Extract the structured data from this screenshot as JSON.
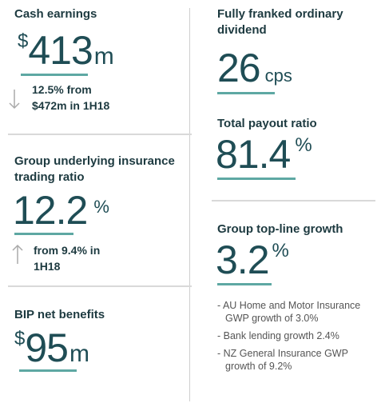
{
  "metrics": [
    {
      "heading": "Cash earnings",
      "prefix": "$",
      "value": 413,
      "suffix": "m",
      "note": "12.5% from $472m in 1H18"
    },
    {
      "heading": "Group underlying insurance trading ratio",
      "value": 12.2,
      "suffix": "%",
      "note": "from 9.4% in 1H18"
    },
    {
      "heading": "BIP net benefits",
      "prefix": "$",
      "value": 95,
      "suffix": "m"
    },
    {
      "heading": "Fully franked ordinary dividend",
      "value": 26,
      "suffix": "cps"
    },
    {
      "heading": "Total payout ratio",
      "value": 81.4,
      "suffix": "%"
    },
    {
      "heading": "Group top-line growth",
      "value": 3.2,
      "suffix": "%",
      "bullets": [
        "AU Home and Motor Insurance GWP growth of 3.0%",
        "Bank lending growth 2.4%",
        "NZ General Insurance GWP growth of 9.2%"
      ]
    }
  ]
}
